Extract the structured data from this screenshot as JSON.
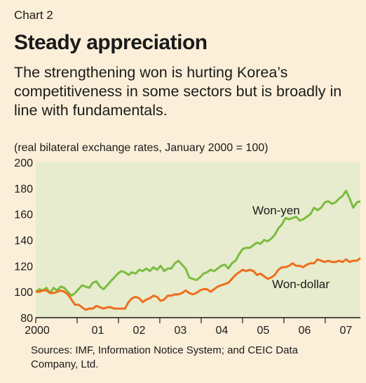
{
  "header": {
    "chart_label": "Chart 2",
    "title": "Steady appreciation",
    "subtitle": "The strengthening won is hurting Korea’s competitiveness in some sectors but is broadly in line with fundamentals.",
    "units": "(real bilateral exchange rates, January 2000 = 100)"
  },
  "source": "Sources: IMF, Information Notice System; and CEIC Data Company, Ltd.",
  "colors": {
    "background": "#fcefd9",
    "plot_bg": "#e6eccd",
    "won_yen": "#7cbb41",
    "won_dollar": "#ef6d1e",
    "axis": "#1a1a1a"
  },
  "chart_data": {
    "type": "line",
    "title": "Steady appreciation",
    "ylabel": "",
    "xlabel": "",
    "ylim": [
      80,
      200
    ],
    "xlim": [
      2000,
      2007.85
    ],
    "yticks": [
      80,
      100,
      120,
      140,
      160,
      180,
      200
    ],
    "xtick_labels": [
      "2000",
      "01",
      "02",
      "03",
      "04",
      "05",
      "06",
      "07"
    ],
    "grid": false,
    "series": [
      {
        "name": "Won-yen",
        "color": "#7cbb41",
        "values": [
          100,
          102,
          101,
          103,
          99,
          103,
          101,
          104,
          103,
          100,
          97,
          99,
          102,
          105,
          104,
          103,
          107,
          108,
          104,
          102,
          105,
          108,
          111,
          114,
          116,
          115,
          113,
          115,
          114,
          117,
          116,
          118,
          116,
          119,
          117,
          120,
          116,
          118,
          118,
          122,
          124,
          121,
          118,
          111,
          110,
          109,
          111,
          114,
          115,
          117,
          116,
          118,
          120,
          121,
          118,
          122,
          124,
          129,
          133,
          134,
          134,
          136,
          138,
          137,
          140,
          139,
          141,
          144,
          149,
          152,
          157,
          156,
          157,
          158,
          155,
          156,
          158,
          160,
          165,
          163,
          165,
          169,
          170,
          168,
          169,
          172,
          174,
          178,
          172,
          165,
          169,
          170
        ]
      },
      {
        "name": "Won-dollar",
        "color": "#ef6d1e",
        "values": [
          100,
          100,
          101,
          101,
          99,
          99,
          100,
          101,
          100,
          98,
          94,
          90,
          90,
          88,
          86,
          87,
          87,
          89,
          88,
          87,
          88,
          88,
          87,
          87,
          87,
          87,
          92,
          95,
          96,
          95,
          92,
          94,
          95,
          97,
          96,
          93,
          94,
          97,
          97,
          98,
          98,
          99,
          101,
          99,
          98,
          99,
          101,
          102,
          102,
          100,
          102,
          104,
          105,
          106,
          107,
          110,
          113,
          115,
          117,
          116,
          117,
          116,
          113,
          114,
          112,
          110,
          111,
          113,
          117,
          119,
          119,
          120,
          122,
          120,
          120,
          119,
          121,
          122,
          122,
          125,
          124,
          123,
          124,
          123,
          123,
          124,
          123,
          125,
          123,
          124,
          124,
          126
        ]
      }
    ]
  }
}
